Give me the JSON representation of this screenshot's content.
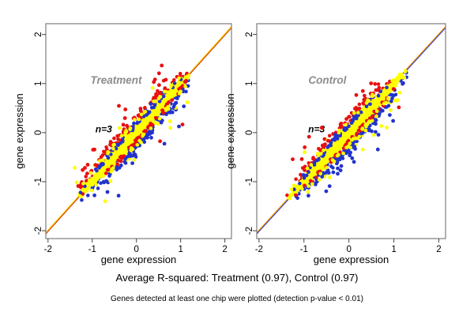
{
  "figure": {
    "caption": "Average R-squared: Treatment (0.97), Control (0.97)",
    "footnote": "Genes detected at least one chip were plotted (detection p-value < 0.01)"
  },
  "colors": {
    "background": "#ffffff",
    "axis_box": "#7d7d7d",
    "tick": "#444444",
    "tick_label": "#000000",
    "axis_label": "#000000",
    "panel_label": "#8c8c8c",
    "annotation": "#000000",
    "point_red": "#e81010",
    "point_blue": "#2233cc",
    "point_yellow": "#ffff00"
  },
  "chart_data": [
    {
      "type": "scatter",
      "panel_label": "Treatment",
      "annotation": "n=3",
      "xlabel": "gene expression",
      "ylabel": "gene expression",
      "xlim": [
        -2.05,
        2.15
      ],
      "ylim": [
        -2.16,
        2.22
      ],
      "xticks": [
        -2,
        -1,
        0,
        1,
        2
      ],
      "yticks": [
        -2,
        -1,
        0,
        1,
        2
      ],
      "grid": false,
      "identity_line": {
        "from": [
          -2.05,
          -2.05
        ],
        "to": [
          2.15,
          2.15
        ],
        "colors": [
          "#cc3300",
          "#ffcc00"
        ]
      },
      "cloud_extent": [
        -1.35,
        1.28
      ],
      "label_pos": [
        -0.46,
        1.06
      ],
      "annotation_pos": [
        -0.74,
        0.07
      ],
      "seed": 11,
      "layers": [
        {
          "type": "fringe",
          "color": "#e81010",
          "n": 250,
          "bias": 0.055
        },
        {
          "type": "fringe",
          "color": "#2233cc",
          "n": 250,
          "bias": -0.055
        },
        {
          "type": "outliers",
          "color": "#e81010",
          "n": 26,
          "side": 1,
          "max": 0.55
        },
        {
          "type": "outliers",
          "color": "#2233cc",
          "n": 22,
          "side": -1,
          "max": 0.5
        },
        {
          "type": "outliers",
          "color": "#ffff00",
          "n": 15,
          "side": -1,
          "max": 0.45
        },
        {
          "type": "core",
          "color": "#ffff00",
          "n": 1500
        }
      ],
      "edge_layers": [
        {
          "type": "edge",
          "color": "#e81010",
          "n": 110,
          "bias": 0.05
        },
        {
          "type": "edge",
          "color": "#2233cc",
          "n": 110,
          "bias": -0.05
        },
        {
          "type": "edge",
          "color": "#ffff00",
          "n": 55,
          "bias": 0
        }
      ],
      "post_dots": []
    },
    {
      "type": "scatter",
      "panel_label": "Control",
      "annotation": "n=3",
      "xlabel": "gene expression",
      "ylabel": "gene expression",
      "xlim": [
        -2.05,
        2.15
      ],
      "ylim": [
        -2.16,
        2.22
      ],
      "xticks": [
        -2,
        -1,
        0,
        1,
        2
      ],
      "yticks": [
        -2,
        -1,
        0,
        1,
        2
      ],
      "grid": false,
      "identity_line": {
        "from": [
          -2.05,
          -2.05
        ],
        "to": [
          2.15,
          2.15
        ],
        "colors": [
          "#2233cc",
          "#ff9900"
        ]
      },
      "cloud_extent": [
        -1.35,
        1.28
      ],
      "label_pos": [
        -0.48,
        1.06
      ],
      "annotation_pos": [
        -0.72,
        0.07
      ],
      "seed": 29,
      "layers": [
        {
          "type": "fringe",
          "color": "#e81010",
          "n": 210,
          "bias": 0.04
        },
        {
          "type": "fringe",
          "color": "#2233cc",
          "n": 270,
          "bias": -0.07
        },
        {
          "type": "outliers",
          "color": "#e81010",
          "n": 16,
          "side": 1,
          "max": 0.5
        },
        {
          "type": "outliers",
          "color": "#2233cc",
          "n": 28,
          "side": -1,
          "max": 0.55
        },
        {
          "type": "outliers",
          "color": "#ffff00",
          "n": 22,
          "side": -1,
          "max": 0.5
        },
        {
          "type": "core",
          "color": "#ffff00",
          "n": 1500
        }
      ],
      "edge_layers": [
        {
          "type": "edge",
          "color": "#e81010",
          "n": 100,
          "bias": 0.04
        },
        {
          "type": "edge",
          "color": "#2233cc",
          "n": 130,
          "bias": -0.06
        },
        {
          "type": "edge",
          "color": "#ffff00",
          "n": 55,
          "bias": 0
        }
      ],
      "post_dots": [
        {
          "x": -0.6,
          "y": 0.1,
          "color": "#e81010"
        }
      ]
    }
  ]
}
